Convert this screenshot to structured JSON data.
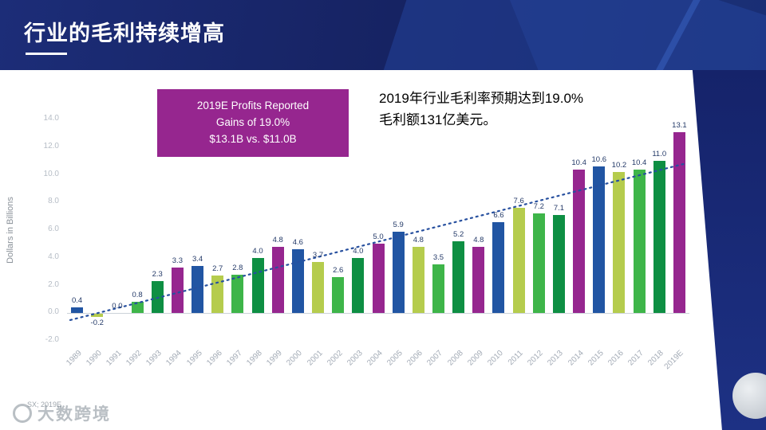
{
  "slide": {
    "title": "行业的毛利持续增高",
    "annotation_line1": "2019年行业毛利率预期达到19.0%",
    "annotation_line2": "毛利额131亿美元。",
    "callout": {
      "line1": "2019E Profits Reported",
      "line2": "Gains of 19.0%",
      "line3": "$13.1B vs. $11.0B",
      "bg": "#96268f"
    },
    "footnote": "SX; 2019E",
    "watermark": "大数跨境"
  },
  "chart_data": {
    "type": "bar",
    "title": "",
    "xlabel": "",
    "ylabel": "Dollars in Billions",
    "ylim": [
      -2,
      14
    ],
    "ytick_step": 2,
    "grid": false,
    "legend": false,
    "categories": [
      "1989",
      "1990",
      "1991",
      "1992",
      "1993",
      "1994",
      "1995",
      "1996",
      "1997",
      "1998",
      "1999",
      "2000",
      "2001",
      "2002",
      "2003",
      "2004",
      "2005",
      "2006",
      "2007",
      "2008",
      "2009",
      "2010",
      "2011",
      "2012",
      "2013",
      "2014",
      "2015",
      "2016",
      "2017",
      "2018",
      "2019E"
    ],
    "values": [
      0.4,
      -0.2,
      0.0,
      0.8,
      2.3,
      3.3,
      3.4,
      2.7,
      2.8,
      4.0,
      4.8,
      4.6,
      3.7,
      2.6,
      4.0,
      5.0,
      5.9,
      4.8,
      3.5,
      5.2,
      4.8,
      6.6,
      7.6,
      7.2,
      7.1,
      10.4,
      10.6,
      10.2,
      10.4,
      11.0,
      13.1
    ],
    "bar_colors": [
      "blue",
      "lightgreen",
      "lightgreen",
      "green",
      "darkgreen",
      "purple",
      "blue",
      "lightgreen",
      "green",
      "darkgreen",
      "purple",
      "blue",
      "lightgreen",
      "green",
      "darkgreen",
      "purple",
      "blue",
      "lightgreen",
      "green",
      "darkgreen",
      "purple",
      "blue",
      "lightgreen",
      "green",
      "darkgreen",
      "purple",
      "blue",
      "lightgreen",
      "green",
      "darkgreen",
      "purple"
    ],
    "palette": {
      "blue": "#2155a3",
      "lightgreen": "#b5cc4d",
      "green": "#3eb549",
      "darkgreen": "#0e8f43",
      "purple": "#96268f"
    },
    "trendline": {
      "style": "dotted",
      "color": "#27509f",
      "start_value": -0.5,
      "end_value": 10.8
    },
    "value_labels": true
  }
}
